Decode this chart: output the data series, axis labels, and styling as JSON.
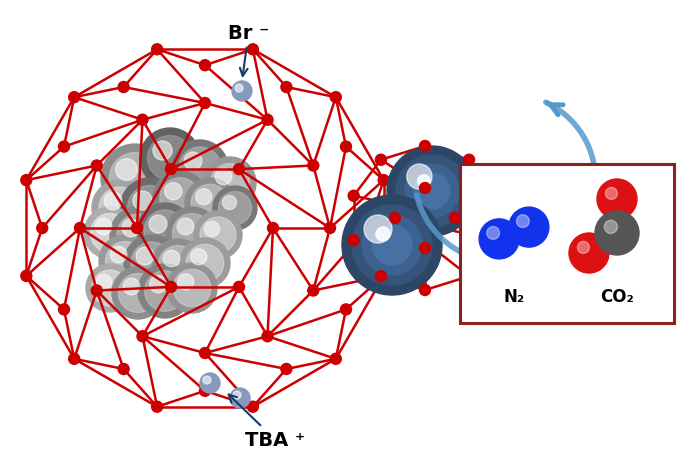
{
  "fig_width": 6.96,
  "fig_height": 4.64,
  "background_color": "#ffffff",
  "cage_color": "#cc0000",
  "node_color": "#cc0000",
  "tba_sphere_dark": "#303030",
  "tba_sphere_mid": "#888888",
  "tba_sphere_light": "#dddddd",
  "br_color": "#8899bb",
  "arrow_color": "#5599cc",
  "box_border_color": "#8B2020",
  "n2_color": "#1133ee",
  "o_color": "#dd1111",
  "c_color": "#555555",
  "label_br": "Br ⁻",
  "label_tba": "TBA ⁺",
  "label_n2": "N₂",
  "label_co2": "CO₂",
  "blue_sphere_color": "#5588bb",
  "blue_sphere_light": "#aaccee"
}
